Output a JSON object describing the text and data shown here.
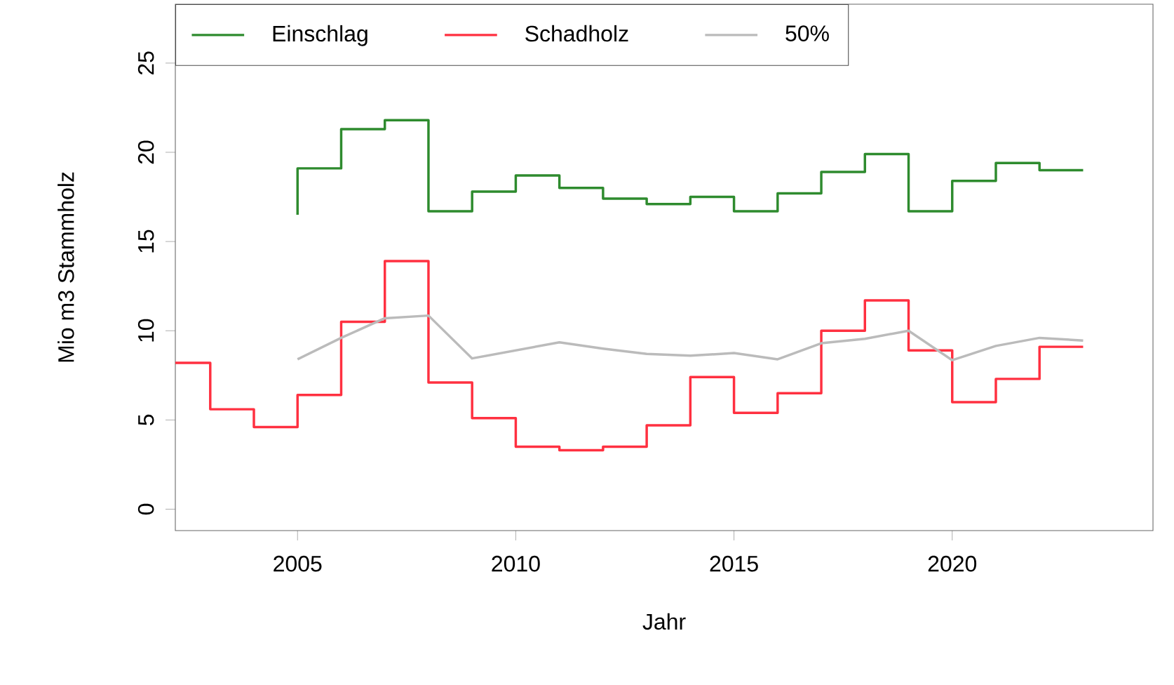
{
  "chart_data": {
    "type": "step",
    "xlabel": "Jahr",
    "ylabel": "Mio m3 Stammholz",
    "xlim": [
      2002.2,
      2024.6
    ],
    "ylim": [
      -1.2,
      28.3
    ],
    "xticks": [
      2005,
      2010,
      2015,
      2020
    ],
    "yticks": [
      0,
      5,
      10,
      15,
      20,
      25
    ],
    "legend": "top left",
    "series": [
      {
        "name": "Einschlag",
        "color": "#2e8b2e",
        "x": [
          2005,
          2006,
          2007,
          2008,
          2009,
          2010,
          2011,
          2012,
          2013,
          2014,
          2015,
          2016,
          2017,
          2018,
          2019,
          2020,
          2021,
          2022,
          2023
        ],
        "values": [
          16.5,
          19.1,
          21.3,
          21.8,
          16.7,
          17.8,
          18.7,
          18.0,
          17.4,
          17.1,
          17.5,
          16.7,
          17.7,
          18.9,
          19.9,
          16.7,
          18.4,
          19.4,
          19.0
        ]
      },
      {
        "name": "Schadholz",
        "color": "#ff3040",
        "x": [
          2002.2,
          2003,
          2004,
          2005,
          2006,
          2007,
          2008,
          2009,
          2010,
          2011,
          2012,
          2013,
          2014,
          2015,
          2016,
          2017,
          2018,
          2019,
          2020,
          2021,
          2022,
          2023
        ],
        "values": [
          8.2,
          8.2,
          5.6,
          4.6,
          6.4,
          10.5,
          13.9,
          7.1,
          5.1,
          3.5,
          3.3,
          3.5,
          4.7,
          7.4,
          5.4,
          6.5,
          10.0,
          11.7,
          8.9,
          6.0,
          7.3,
          9.1
        ]
      },
      {
        "name": "50%",
        "type": "line",
        "color": "#bbbbbb",
        "x": [
          2005,
          2006,
          2007,
          2008,
          2009,
          2010,
          2011,
          2012,
          2013,
          2014,
          2015,
          2016,
          2017,
          2018,
          2019,
          2020,
          2021,
          2022,
          2023
        ],
        "values": [
          8.4,
          9.6,
          10.7,
          10.85,
          8.45,
          8.9,
          9.35,
          9.0,
          8.7,
          8.6,
          8.75,
          8.4,
          9.3,
          9.55,
          10.0,
          8.35,
          9.15,
          9.6,
          9.45
        ]
      }
    ]
  }
}
